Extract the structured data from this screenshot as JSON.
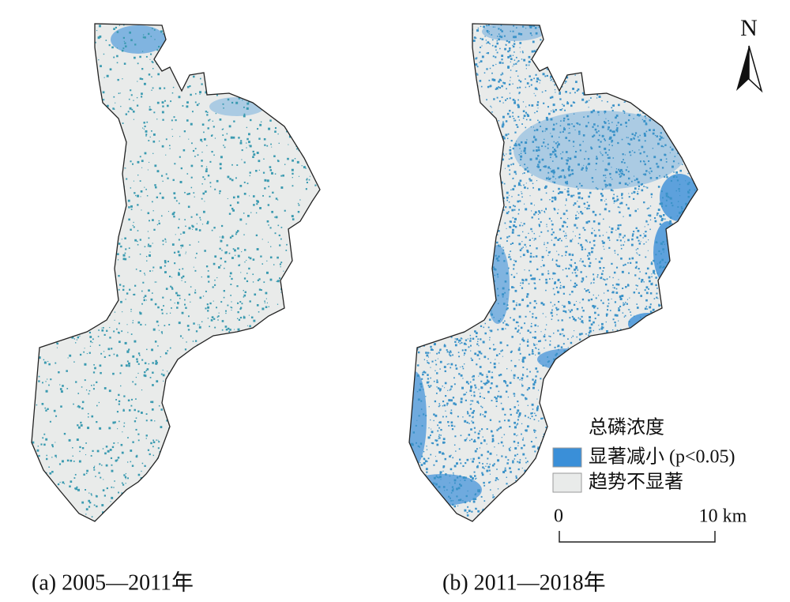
{
  "north": "N",
  "legend": {
    "title": "总磷浓度",
    "items": [
      "显著减小 (p<0.05)",
      "趋势不显著"
    ]
  },
  "scale_bar": {
    "start": "0",
    "end": "10 km"
  },
  "panels": [
    {
      "caption": "(a) 2005—2011年"
    },
    {
      "caption": "(b) 2011—2018年"
    }
  ]
}
